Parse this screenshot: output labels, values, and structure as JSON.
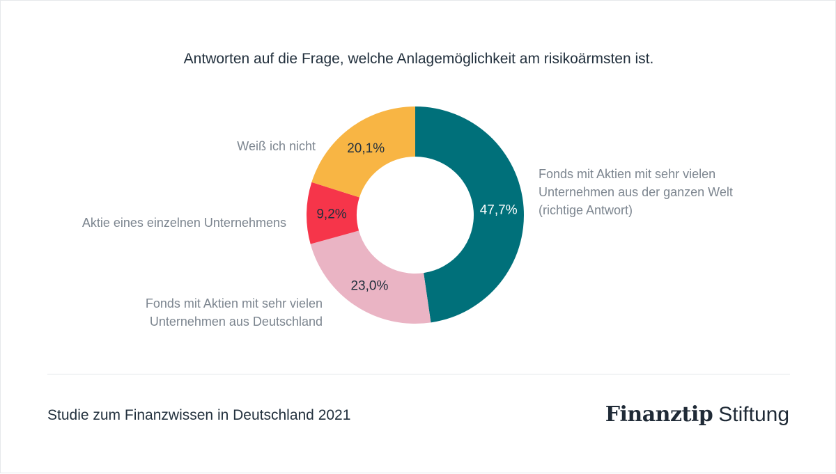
{
  "chart_data": {
    "type": "pie",
    "title": "Antworten auf die Frage, welche Anlagemöglichkeit am risikoärmsten ist.",
    "donut": true,
    "slices": [
      {
        "label_lines": [
          "Fonds mit Aktien mit sehr vielen",
          "Unternehmen aus der ganzen Welt",
          "(richtige Antwort)"
        ],
        "value": 47.7,
        "value_label": "47,7%",
        "color": "#00707a",
        "value_label_color": "#ffffff"
      },
      {
        "label_lines": [
          "Fonds mit Aktien mit sehr vielen",
          "Unternehmen aus Deutschland"
        ],
        "value": 23.0,
        "value_label": "23,0%",
        "color": "#eab4c4",
        "value_label_color": "#22303d"
      },
      {
        "label_lines": [
          "Aktie eines einzelnen Unternehmens"
        ],
        "value": 9.2,
        "value_label": "9,2%",
        "color": "#f6354a",
        "value_label_color": "#22303d"
      },
      {
        "label_lines": [
          "Weiß ich nicht"
        ],
        "value": 20.1,
        "value_label": "20,1%",
        "color": "#f8b544",
        "value_label_color": "#22303d"
      }
    ]
  },
  "footer": {
    "source": "Studie zum Finanzwissen in Deutschland 2021",
    "brand_bold": "Finanztip",
    "brand_regular": "Stiftung"
  }
}
